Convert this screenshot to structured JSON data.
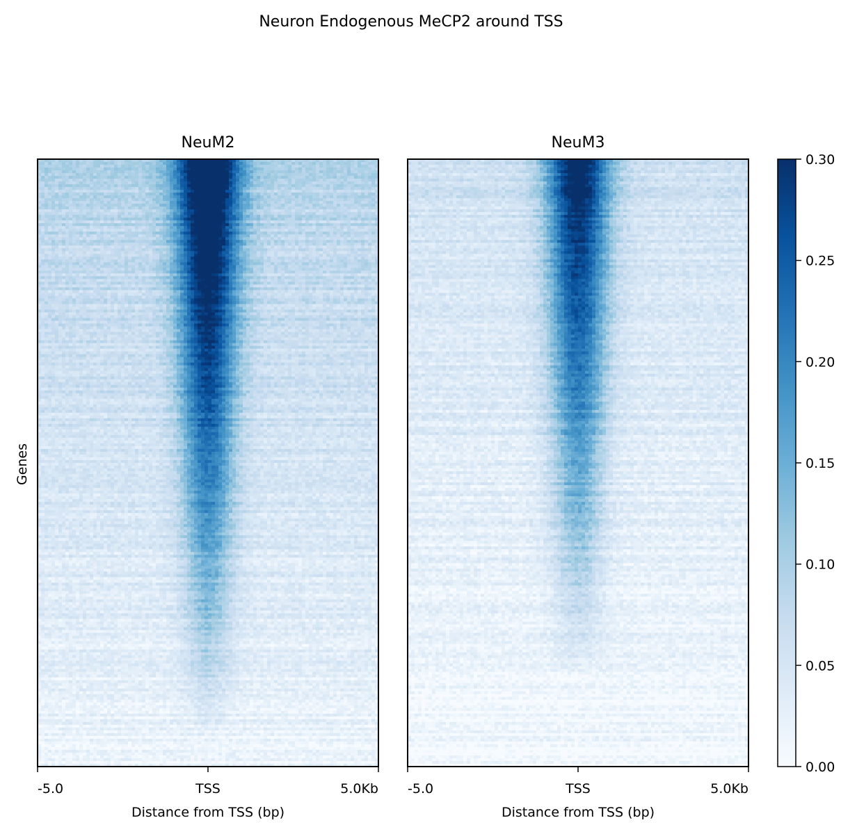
{
  "chart_data": {
    "type": "heatmap",
    "title": "Neuron Endogenous MeCP2 around TSS",
    "ylabel": "Genes",
    "colormap": "Blues",
    "colorbar": {
      "vmin": 0.0,
      "vmax": 0.3,
      "ticks": [
        "0.00",
        "0.05",
        "0.10",
        "0.15",
        "0.20",
        "0.25",
        "0.30"
      ],
      "tick_values": [
        0.0,
        0.05,
        0.1,
        0.15,
        0.2,
        0.25,
        0.3
      ]
    },
    "panels": [
      {
        "name": "NeuM2",
        "xlabel": "Distance from TSS (bp)",
        "xticks": [
          "-5.0",
          "TSS",
          "5.0Kb"
        ],
        "background_top": 0.09,
        "background_bottom": 0.015,
        "peak_top": 0.3,
        "peak_fade_fraction": 0.95
      },
      {
        "name": "NeuM3",
        "xlabel": "Distance from TSS (bp)",
        "xticks": [
          "-5.0",
          "TSS",
          "5.0Kb"
        ],
        "background_top": 0.06,
        "background_bottom": 0.005,
        "peak_top": 0.27,
        "peak_fade_fraction": 0.85
      }
    ],
    "colors": {
      "low": "#f7fbff",
      "high": "#08306b",
      "axis": "#000000"
    }
  }
}
